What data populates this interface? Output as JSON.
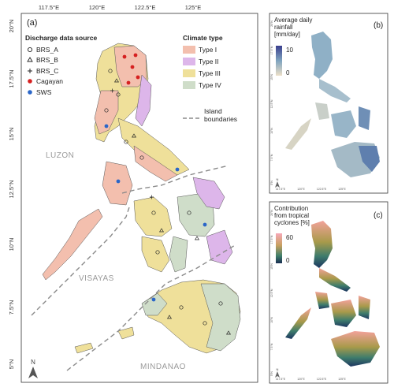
{
  "main_panel": {
    "label": "(a)",
    "lon_ticks": [
      "117.5°E",
      "120°E",
      "122.5°E",
      "125°E"
    ],
    "lat_ticks": [
      "20°N",
      "17.5°N",
      "15°N",
      "12.5°N",
      "10°N",
      "7.5°N",
      "5°N"
    ],
    "legend_data": {
      "title": "Discharge data source",
      "items": [
        {
          "label": "BRS_A",
          "marker": "open-circle",
          "color": "#222222"
        },
        {
          "label": "BRS_B",
          "marker": "open-triangle",
          "color": "#222222"
        },
        {
          "label": "BRS_C",
          "marker": "plus",
          "color": "#222222"
        },
        {
          "label": "Cagayan",
          "marker": "filled-circle",
          "color": "#d62020"
        },
        {
          "label": "SWS",
          "marker": "filled-circle",
          "color": "#2a66c8"
        }
      ]
    },
    "legend_climate": {
      "title": "Climate type",
      "items": [
        {
          "label": "Type I",
          "color": "#f3bfae"
        },
        {
          "label": "Type II",
          "color": "#ddb6ea"
        },
        {
          "label": "Type III",
          "color": "#efe09a"
        },
        {
          "label": "Type IV",
          "color": "#cfddc9"
        }
      ]
    },
    "boundary_legend": "Island\nboundaries",
    "regions": [
      "LUZON",
      "VISAYAS",
      "MINDANAO"
    ],
    "north": "N"
  },
  "panel_b": {
    "label": "(b)",
    "title": "Average daily\nrainfall\n[mm/day]",
    "colorbar_ticks": [
      "10",
      "0"
    ],
    "lon_ticks": [
      "117.5°E",
      "120°E",
      "122.5°E",
      "125°E"
    ],
    "lat_ticks": [
      "20°N",
      "17.5°N",
      "15°N",
      "12.5°N",
      "10°N",
      "7.5°N",
      "5°N"
    ],
    "north": "N"
  },
  "panel_c": {
    "label": "(c)",
    "title": "Contribution\nfrom tropical\ncyclones [%]",
    "colorbar_ticks": [
      "60",
      "0"
    ],
    "lon_ticks": [
      "117.5°E",
      "120°E",
      "122.5°E",
      "125°E"
    ],
    "lat_ticks": [
      "20°N",
      "17.5°N",
      "15°N",
      "12.5°N",
      "10°N",
      "7.5°N",
      "5°N"
    ],
    "north": "N"
  }
}
